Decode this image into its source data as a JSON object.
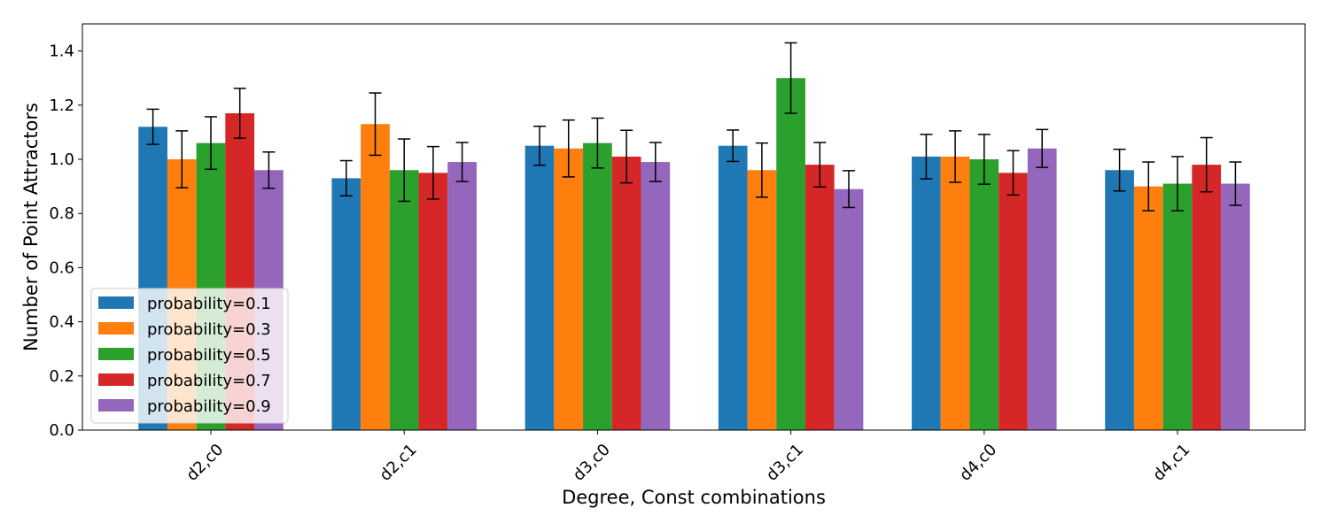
{
  "chart_data": {
    "type": "bar",
    "title": "",
    "xlabel": "Degree, Const combinations",
    "ylabel": "Number of Point Attractors",
    "ylim": [
      0,
      1.5
    ],
    "yticks": [
      "0.0",
      "0.2",
      "0.4",
      "0.6",
      "0.8",
      "1.0",
      "1.2",
      "1.4"
    ],
    "categories": [
      "d2,c0",
      "d2,c1",
      "d3,c0",
      "d3,c1",
      "d4,c0",
      "d4,c1"
    ],
    "grid": false,
    "legend_position": "lower-left",
    "series": [
      {
        "name": "probability=0.1",
        "color": "#1f77b4",
        "values": [
          1.12,
          0.93,
          1.05,
          1.05,
          1.01,
          0.96
        ],
        "errors": [
          0.065,
          0.065,
          0.072,
          0.058,
          0.082,
          0.077
        ]
      },
      {
        "name": "probability=0.3",
        "color": "#ff7f0e",
        "values": [
          1.0,
          1.13,
          1.04,
          0.96,
          1.01,
          0.9
        ],
        "errors": [
          0.105,
          0.115,
          0.105,
          0.1,
          0.095,
          0.09
        ]
      },
      {
        "name": "probability=0.5",
        "color": "#2ca02c",
        "values": [
          1.06,
          0.96,
          1.06,
          1.3,
          1.0,
          0.91
        ],
        "errors": [
          0.097,
          0.115,
          0.092,
          0.13,
          0.092,
          0.1
        ]
      },
      {
        "name": "probability=0.7",
        "color": "#d62728",
        "values": [
          1.17,
          0.95,
          1.01,
          0.98,
          0.95,
          0.98
        ],
        "errors": [
          0.092,
          0.097,
          0.097,
          0.082,
          0.082,
          0.1
        ]
      },
      {
        "name": "probability=0.9",
        "color": "#9467bd",
        "values": [
          0.96,
          0.99,
          0.99,
          0.89,
          1.04,
          0.91
        ],
        "errors": [
          0.067,
          0.072,
          0.072,
          0.068,
          0.07,
          0.08
        ]
      }
    ]
  }
}
